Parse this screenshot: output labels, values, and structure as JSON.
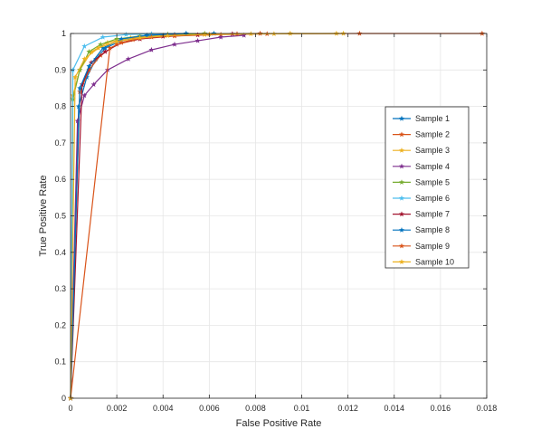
{
  "chart_data": {
    "type": "line",
    "title": "",
    "xlabel": "False Positive Rate",
    "ylabel": "True Positive Rate",
    "xlim": [
      0,
      0.018
    ],
    "ylim": [
      0,
      1
    ],
    "xticks": [
      "0",
      "0.002",
      "0.004",
      "0.006",
      "0.008",
      "0.01",
      "0.012",
      "0.014",
      "0.016",
      "0.018"
    ],
    "yticks": [
      "0",
      "0.1",
      "0.2",
      "0.3",
      "0.4",
      "0.5",
      "0.6",
      "0.7",
      "0.8",
      "0.9",
      "1"
    ],
    "grid": true,
    "legend_position": "right",
    "series": [
      {
        "name": "Sample 1",
        "color": "#0072BD",
        "x": [
          0,
          0.00035,
          0.0007,
          0.0011,
          0.0015,
          0.0022,
          0.003,
          0.0045,
          0.0062
        ],
        "y": [
          0,
          0.8,
          0.88,
          0.93,
          0.96,
          0.98,
          0.99,
          0.997,
          1
        ]
      },
      {
        "name": "Sample 2",
        "color": "#D95319",
        "x": [
          0,
          0.0004,
          0.0008,
          0.0013,
          0.002,
          0.003,
          0.0045,
          0.0065,
          0.0085,
          0.0125,
          0.0178
        ],
        "y": [
          0,
          0.84,
          0.9,
          0.94,
          0.97,
          0.985,
          0.993,
          0.997,
          0.999,
          1,
          1
        ]
      },
      {
        "name": "Sample 3",
        "color": "#EDB120",
        "x": [
          0,
          0.0001,
          0.0004,
          0.0009,
          0.0016,
          0.0026,
          0.004,
          0.006,
          0.0088,
          0.0118
        ],
        "y": [
          0,
          0.83,
          0.9,
          0.95,
          0.975,
          0.988,
          0.995,
          0.998,
          0.999,
          1
        ]
      },
      {
        "name": "Sample 4",
        "color": "#7E2F8E",
        "x": [
          0,
          0.0003,
          0.0006,
          0.001,
          0.0016,
          0.0025,
          0.0035,
          0.0045,
          0.0055,
          0.0065,
          0.0075
        ],
        "y": [
          0,
          0.76,
          0.83,
          0.86,
          0.9,
          0.93,
          0.955,
          0.97,
          0.98,
          0.99,
          0.995
        ]
      },
      {
        "name": "Sample 5",
        "color": "#77AC30",
        "x": [
          0,
          0.0001,
          0.0004,
          0.0008,
          0.0013,
          0.002,
          0.003,
          0.0042,
          0.0058
        ],
        "y": [
          0,
          0.82,
          0.9,
          0.95,
          0.97,
          0.985,
          0.993,
          0.998,
          1
        ]
      },
      {
        "name": "Sample 6",
        "color": "#4DBEEE",
        "x": [
          0,
          0.0001,
          0.0006,
          0.0014,
          0.0024,
          0.0035,
          0.005
        ],
        "y": [
          0,
          0.9,
          0.965,
          0.99,
          0.997,
          0.999,
          1
        ]
      },
      {
        "name": "Sample 7",
        "color": "#A2142F",
        "x": [
          0,
          0.0005,
          0.0009,
          0.0015,
          0.0022,
          0.003,
          0.004,
          0.0055,
          0.007
        ],
        "y": [
          0,
          0.86,
          0.92,
          0.95,
          0.975,
          0.985,
          0.992,
          0.996,
          0.999
        ]
      },
      {
        "name": "Sample 8",
        "color": "#0072BD",
        "x": [
          0,
          0.0004,
          0.0008,
          0.0014,
          0.0022,
          0.0033,
          0.005
        ],
        "y": [
          0,
          0.85,
          0.91,
          0.96,
          0.985,
          0.995,
          1
        ]
      },
      {
        "name": "Sample 9",
        "color": "#D95319",
        "x": [
          0,
          0.0017,
          0.0022,
          0.0027,
          0.0035,
          0.0045,
          0.0058,
          0.0072,
          0.0082
        ],
        "y": [
          0,
          0.96,
          0.975,
          0.983,
          0.99,
          0.994,
          0.997,
          0.999,
          1
        ]
      },
      {
        "name": "Sample 10",
        "color": "#EDB120",
        "x": [
          0,
          0.0002,
          0.0006,
          0.0012,
          0.002,
          0.003,
          0.0042,
          0.0058,
          0.0078,
          0.0095,
          0.0115
        ],
        "y": [
          0,
          0.88,
          0.93,
          0.96,
          0.978,
          0.988,
          0.994,
          0.997,
          0.999,
          1,
          1
        ]
      }
    ]
  }
}
